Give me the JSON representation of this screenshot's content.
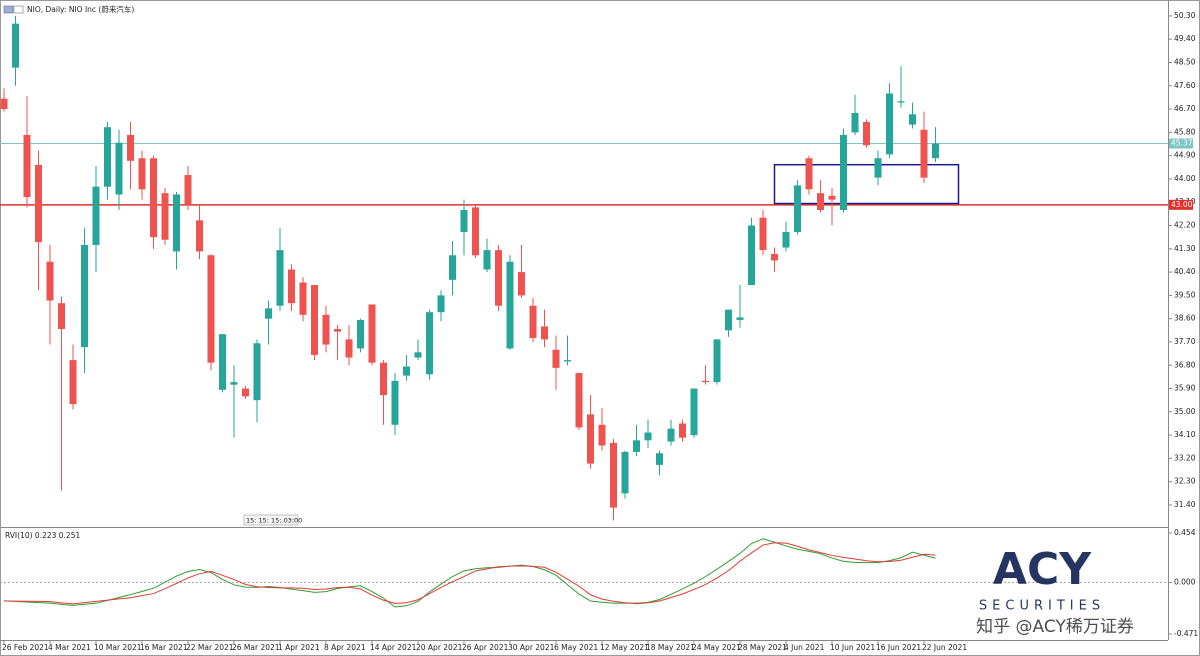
{
  "chart_data": {
    "type": "candlestick",
    "title": "NIO, Daily: NIO Inc (蔚来汽车)",
    "categories": [
      "26 Feb 2021",
      null,
      null,
      null,
      "4 Mar 2021",
      null,
      null,
      null,
      "10 Mar 2021",
      null,
      null,
      null,
      "16 Mar 2021",
      null,
      null,
      null,
      "22 Mar 2021",
      null,
      null,
      null,
      "26 Mar 2021",
      null,
      null,
      null,
      "1 Apr 2021",
      null,
      null,
      null,
      "8 Apr 2021",
      null,
      null,
      null,
      "14 Apr 2021",
      null,
      null,
      null,
      "20 Apr 2021",
      null,
      null,
      null,
      "26 Apr 2021",
      null,
      null,
      null,
      "30 Apr 2021",
      null,
      null,
      null,
      "6 May 2021",
      null,
      null,
      null,
      "12 May 2021",
      null,
      null,
      null,
      "18 May 2021",
      null,
      null,
      null,
      "24 May 2021",
      null,
      null,
      null,
      "28 May 2021",
      null,
      null,
      null,
      "4 Jun 2021",
      null,
      null,
      null,
      "10 Jun 2021",
      null,
      null,
      null,
      "16 Jun 2021",
      null,
      null,
      null,
      "22 Jun 2021",
      null
    ],
    "open": [
      47.1,
      48.3,
      45.7,
      44.54,
      40.8,
      39.2,
      37.0,
      37.5,
      41.45,
      43.7,
      43.4,
      45.7,
      44.8,
      44.8,
      43.45,
      41.2,
      44.15,
      42.4,
      41.05,
      35.85,
      36.05,
      35.9,
      35.45,
      38.6,
      39.1,
      40.5,
      40.0,
      39.9,
      38.75,
      38.2,
      37.8,
      37.45,
      39.15,
      36.9,
      34.5,
      36.4,
      37.1,
      36.45,
      38.85,
      40.1,
      41.95,
      42.9,
      40.5,
      41.25,
      37.45,
      40.4,
      39.1,
      38.3,
      37.4,
      36.95,
      36.5,
      34.9,
      34.5,
      33.8,
      31.85,
      33.45,
      33.9,
      32.95,
      33.85,
      34.55,
      34.1,
      36.2,
      36.15,
      38.15,
      38.55,
      39.9,
      42.5,
      41.1,
      41.35,
      41.95,
      44.8,
      43.45,
      43.35,
      42.8,
      45.8,
      46.2,
      44.05,
      44.95,
      46.95,
      46.1,
      45.9,
      44.8
    ],
    "high": [
      47.5,
      50.3,
      47.2,
      45.1,
      41.45,
      39.45,
      37.6,
      42.1,
      44.5,
      46.2,
      45.9,
      46.2,
      45.1,
      44.9,
      43.65,
      43.5,
      44.5,
      43.0,
      41.1,
      38.0,
      36.8,
      36.0,
      37.8,
      39.3,
      42.1,
      40.7,
      40.2,
      39.9,
      39.1,
      38.35,
      38.35,
      38.6,
      39.15,
      37.0,
      36.5,
      37.2,
      37.8,
      38.95,
      39.7,
      41.6,
      43.2,
      43.0,
      41.7,
      41.45,
      41.05,
      41.45,
      39.4,
      38.95,
      37.95,
      37.95,
      36.5,
      35.65,
      35.15,
      33.95,
      33.5,
      34.5,
      34.7,
      33.5,
      34.7,
      34.7,
      35.9,
      36.8,
      37.8,
      38.95,
      39.9,
      42.5,
      42.8,
      41.35,
      42.35,
      43.95,
      44.9,
      43.95,
      43.65,
      45.95,
      47.25,
      46.3,
      45.1,
      47.7,
      48.35,
      46.95,
      46.6,
      46.0
    ],
    "low": [
      46.6,
      47.6,
      42.9,
      39.7,
      37.6,
      31.95,
      35.1,
      36.5,
      40.4,
      43.2,
      42.8,
      43.6,
      43.2,
      41.3,
      41.45,
      40.5,
      42.8,
      40.9,
      36.6,
      35.75,
      34.0,
      35.5,
      34.6,
      37.6,
      38.9,
      38.9,
      38.5,
      37.0,
      37.3,
      37.0,
      36.8,
      37.3,
      36.8,
      34.5,
      34.1,
      36.2,
      37.0,
      36.25,
      38.5,
      39.5,
      41.05,
      40.95,
      40.4,
      38.9,
      37.4,
      39.4,
      37.7,
      37.5,
      35.85,
      36.8,
      34.3,
      32.8,
      33.5,
      30.8,
      31.65,
      33.3,
      33.6,
      32.55,
      33.7,
      33.85,
      34.0,
      36.05,
      36.05,
      37.9,
      38.25,
      39.9,
      41.05,
      40.4,
      41.2,
      41.85,
      43.4,
      42.7,
      42.2,
      42.7,
      45.7,
      45.2,
      43.75,
      44.8,
      46.75,
      45.95,
      43.85,
      44.65
    ],
    "close": [
      46.7,
      50.0,
      43.3,
      41.56,
      39.3,
      38.2,
      35.3,
      41.45,
      43.7,
      46.0,
      45.4,
      44.7,
      43.6,
      41.75,
      41.65,
      43.4,
      43.0,
      41.2,
      36.9,
      38.0,
      36.15,
      35.6,
      37.65,
      39.0,
      41.25,
      39.2,
      38.75,
      37.2,
      37.6,
      38.1,
      37.1,
      38.55,
      36.9,
      35.65,
      36.2,
      36.75,
      37.3,
      38.85,
      39.5,
      41.05,
      42.8,
      41.05,
      41.25,
      39.1,
      40.8,
      39.5,
      37.85,
      37.8,
      36.7,
      37.0,
      34.4,
      33.0,
      33.7,
      31.3,
      33.45,
      33.9,
      34.2,
      33.4,
      34.35,
      34.0,
      35.9,
      36.15,
      37.8,
      38.95,
      38.65,
      42.2,
      41.25,
      40.85,
      41.95,
      43.75,
      43.6,
      42.8,
      43.2,
      45.7,
      46.55,
      45.3,
      44.8,
      47.3,
      47.0,
      46.5,
      44.05,
      45.37
    ],
    "up_color": "#26a69a",
    "down_color": "#ef5350",
    "ylim": [
      30.55,
      50.76
    ],
    "yticks": [
      {
        "value": 50.3,
        "label": "50.30"
      },
      {
        "value": 49.4,
        "label": "49.40"
      },
      {
        "value": 48.5,
        "label": "48.50"
      },
      {
        "value": 47.6,
        "label": "47.60"
      },
      {
        "value": 46.7,
        "label": "46.70"
      },
      {
        "value": 45.8,
        "label": "45.80"
      },
      {
        "value": 44.9,
        "label": "44.90"
      },
      {
        "value": 44,
        "label": "44.00"
      },
      {
        "value": 43.1,
        "label": "43.10"
      },
      {
        "value": 42.2,
        "label": "42.20"
      },
      {
        "value": 41.3,
        "label": "41.30"
      },
      {
        "value": 40.4,
        "label": "40.40"
      },
      {
        "value": 39.5,
        "label": "39.50"
      },
      {
        "value": 38.6,
        "label": "38.60"
      },
      {
        "value": 37.7,
        "label": "37.70"
      },
      {
        "value": 36.8,
        "label": "36.80"
      },
      {
        "value": 35.9,
        "label": "35.90"
      },
      {
        "value": 35,
        "label": "35.00"
      },
      {
        "value": 34.1,
        "label": "34.10"
      },
      {
        "value": 33.2,
        "label": "33.20"
      },
      {
        "value": 32.3,
        "label": "32.30"
      },
      {
        "value": 31.4,
        "label": "31.40"
      }
    ],
    "price_lines": [
      {
        "value": 45.37,
        "label": "45.37",
        "color": "#7cc6c6"
      },
      {
        "value": 43,
        "label": "43.00",
        "color": "#e0302a"
      }
    ],
    "zone": {
      "x": [
        67,
        83
      ],
      "y": [
        43.05,
        44.55
      ],
      "color": "#1a1a8c"
    },
    "time_marker": "15: 15: 15: 03:00",
    "indicator": {
      "type": "line",
      "title": "RVI(10) 0.223 0.251",
      "ylim": [
        -0.526,
        0.49
      ],
      "yticks": [
        {
          "value": 0.454,
          "label": "0.454"
        },
        {
          "value": 0,
          "label": "0.000"
        },
        {
          "value": -0.471,
          "label": "-0.471"
        }
      ],
      "series": [
        {
          "color": "#2e9e2e",
          "values": [
            -0.168,
            -0.173,
            -0.178,
            -0.184,
            -0.189,
            -0.2,
            -0.209,
            -0.199,
            -0.189,
            -0.164,
            -0.137,
            -0.11,
            -0.082,
            -0.052,
            0.003,
            0.059,
            0.101,
            0.119,
            0.091,
            0.028,
            -0.021,
            -0.042,
            -0.044,
            -0.036,
            -0.046,
            -0.06,
            -0.074,
            -0.09,
            -0.083,
            -0.055,
            -0.04,
            -0.03,
            -0.083,
            -0.143,
            -0.224,
            -0.213,
            -0.173,
            -0.087,
            -0.014,
            0.054,
            0.107,
            0.126,
            0.135,
            0.139,
            0.15,
            0.159,
            0.147,
            0.117,
            0.067,
            -0.02,
            -0.106,
            -0.169,
            -0.18,
            -0.189,
            -0.189,
            -0.189,
            -0.182,
            -0.155,
            -0.108,
            -0.059,
            -0.006,
            0.054,
            0.122,
            0.193,
            0.266,
            0.357,
            0.401,
            0.369,
            0.335,
            0.305,
            0.285,
            0.264,
            0.224,
            0.194,
            0.185,
            0.182,
            0.182,
            0.201,
            0.227,
            0.278,
            0.25,
            0.223
          ]
        },
        {
          "color": "#e53935",
          "values": [
            -0.168,
            -0.17,
            -0.171,
            -0.173,
            -0.175,
            -0.186,
            -0.195,
            -0.184,
            -0.172,
            -0.161,
            -0.15,
            -0.139,
            -0.12,
            -0.101,
            -0.056,
            -0.008,
            0.042,
            0.081,
            0.102,
            0.066,
            0.027,
            -0.017,
            -0.039,
            -0.045,
            -0.049,
            -0.049,
            -0.052,
            -0.064,
            -0.059,
            -0.045,
            -0.043,
            -0.059,
            -0.115,
            -0.162,
            -0.191,
            -0.185,
            -0.158,
            -0.102,
            -0.045,
            0.008,
            0.055,
            0.106,
            0.125,
            0.144,
            0.15,
            0.153,
            0.148,
            0.14,
            0.094,
            0.031,
            -0.034,
            -0.112,
            -0.152,
            -0.171,
            -0.185,
            -0.194,
            -0.185,
            -0.169,
            -0.137,
            -0.105,
            -0.063,
            -0.019,
            0.041,
            0.109,
            0.196,
            0.271,
            0.343,
            0.364,
            0.361,
            0.332,
            0.299,
            0.274,
            0.248,
            0.23,
            0.215,
            0.199,
            0.19,
            0.193,
            0.204,
            0.231,
            0.259,
            0.251
          ]
        }
      ]
    },
    "watermark": {
      "logo": "ACY",
      "tagline": "SECURITIES",
      "credit": "知乎 @ACY稀万证券"
    }
  }
}
